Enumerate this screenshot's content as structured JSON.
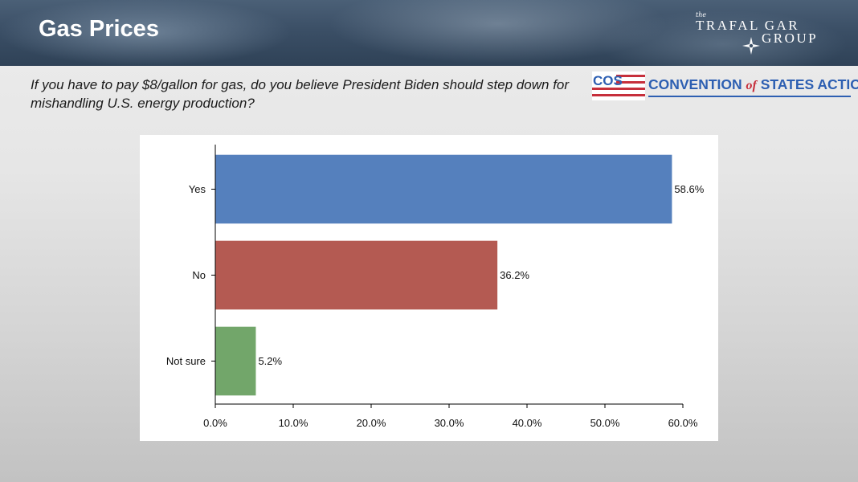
{
  "header": {
    "title": "Gas Prices",
    "logo_the": "the",
    "logo_line1": "TRAFAL GAR",
    "logo_line2": "GROUP"
  },
  "question": "If you have to pay $8/gallon for gas, do you believe President Biden should step down for mishandling U.S. energy production?",
  "sponsor": {
    "mark_text": "COS",
    "name_part1": "CONVENTION ",
    "name_of": "of",
    "name_part2": " STATES ACTION"
  },
  "colors": {
    "yes": "#5580bd",
    "no": "#b45a52",
    "not_sure": "#72a66a",
    "brand_blue": "#2d5fb2",
    "brand_red": "#c62f3b"
  },
  "chart_data": {
    "type": "bar",
    "orientation": "horizontal",
    "categories": [
      "Yes",
      "No",
      "Not sure"
    ],
    "values": [
      58.6,
      36.2,
      5.2
    ],
    "value_labels": [
      "58.6%",
      "36.2%",
      "5.2%"
    ],
    "xlim": [
      0,
      60
    ],
    "xticks": [
      0,
      10,
      20,
      30,
      40,
      50,
      60
    ],
    "xtick_labels": [
      "0.0%",
      "10.0%",
      "20.0%",
      "30.0%",
      "40.0%",
      "50.0%",
      "60.0%"
    ],
    "grid": false,
    "legend": "none"
  }
}
